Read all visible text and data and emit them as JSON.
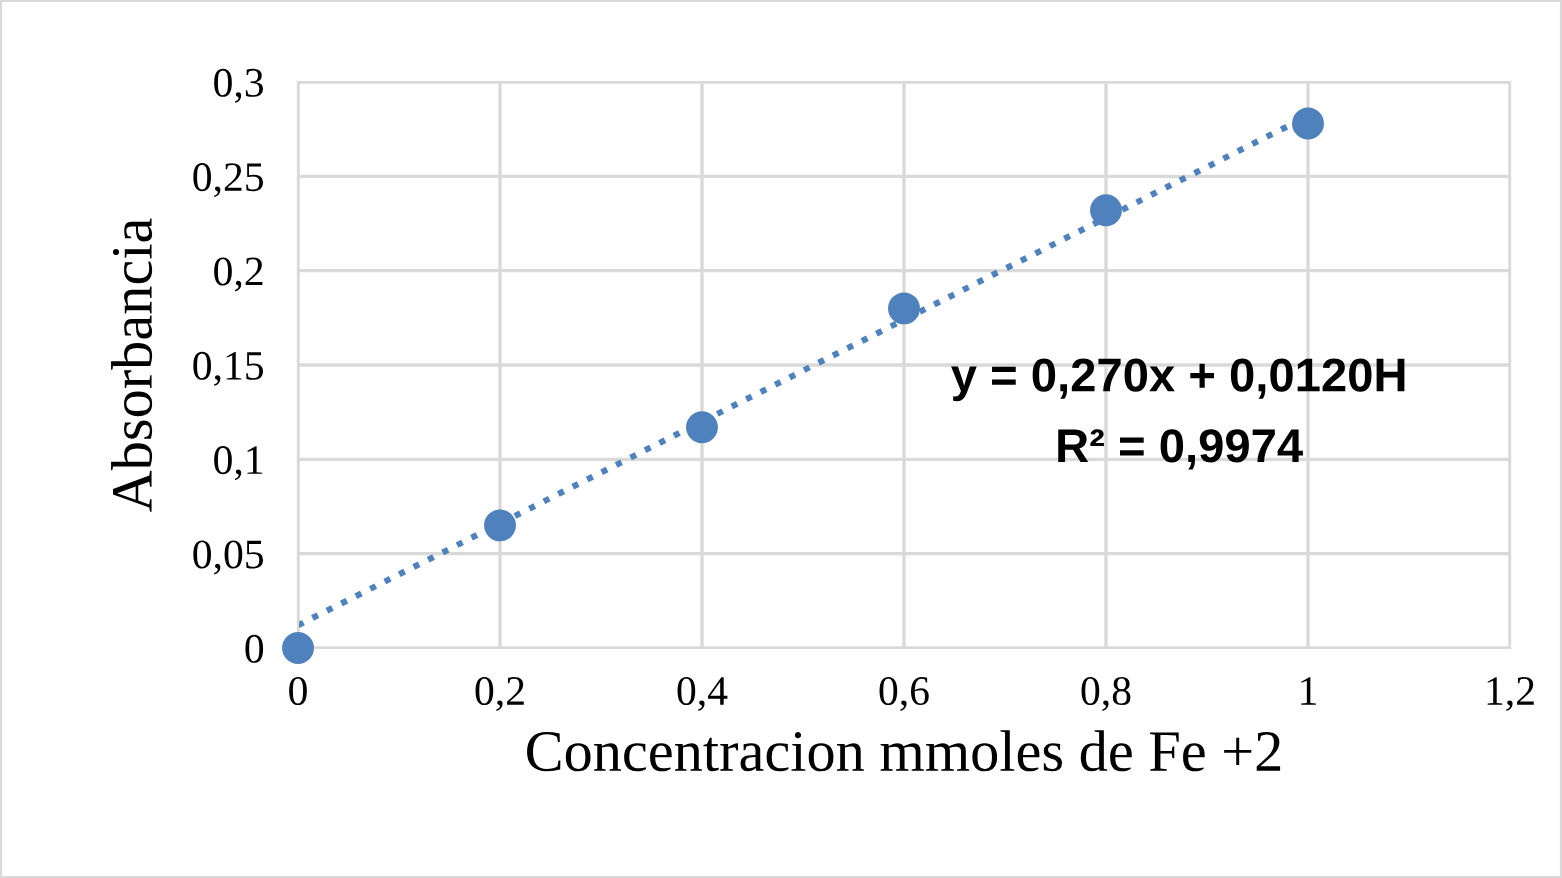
{
  "chart_data": {
    "type": "scatter",
    "xlabel": "Concentracion mmoles de Fe +2",
    "ylabel": "Absorbancia",
    "series": [
      {
        "color": "#4f81bd",
        "marker": "circle",
        "x": [
          0,
          0.2,
          0.4,
          0.6,
          0.8,
          1
        ],
        "values": [
          0,
          0.065,
          0.117,
          0.18,
          0.232,
          0.278
        ]
      },
      {
        "type": "line",
        "color": "#4f81bd",
        "line_style": "dotted",
        "marker": "none",
        "x": [
          0,
          1
        ],
        "values": [
          0.012,
          0.282
        ]
      }
    ],
    "annotations": [
      "y = 0,270x + 0,0120H",
      "R² = 0,9974"
    ],
    "xlim": [
      0,
      1.2
    ],
    "ylim": [
      0,
      0.3
    ],
    "xticks": [
      0,
      {
        "value": 0.2,
        "label": "0,2"
      },
      {
        "value": 0.4,
        "label": "0,4"
      },
      {
        "value": 0.6,
        "label": "0,6"
      },
      {
        "value": 0.8,
        "label": "0,8"
      },
      1,
      {
        "value": 1.2,
        "label": "1,2"
      }
    ],
    "yticks": [
      0,
      {
        "value": 0.05,
        "label": "0,05"
      },
      {
        "value": 0.1,
        "label": "0,1"
      },
      {
        "value": 0.15,
        "label": "0,15"
      },
      {
        "value": 0.2,
        "label": "0,2"
      },
      {
        "value": 0.25,
        "label": "0,25"
      },
      {
        "value": 0.3,
        "label": "0,3"
      }
    ],
    "grid": true,
    "legend": false
  }
}
